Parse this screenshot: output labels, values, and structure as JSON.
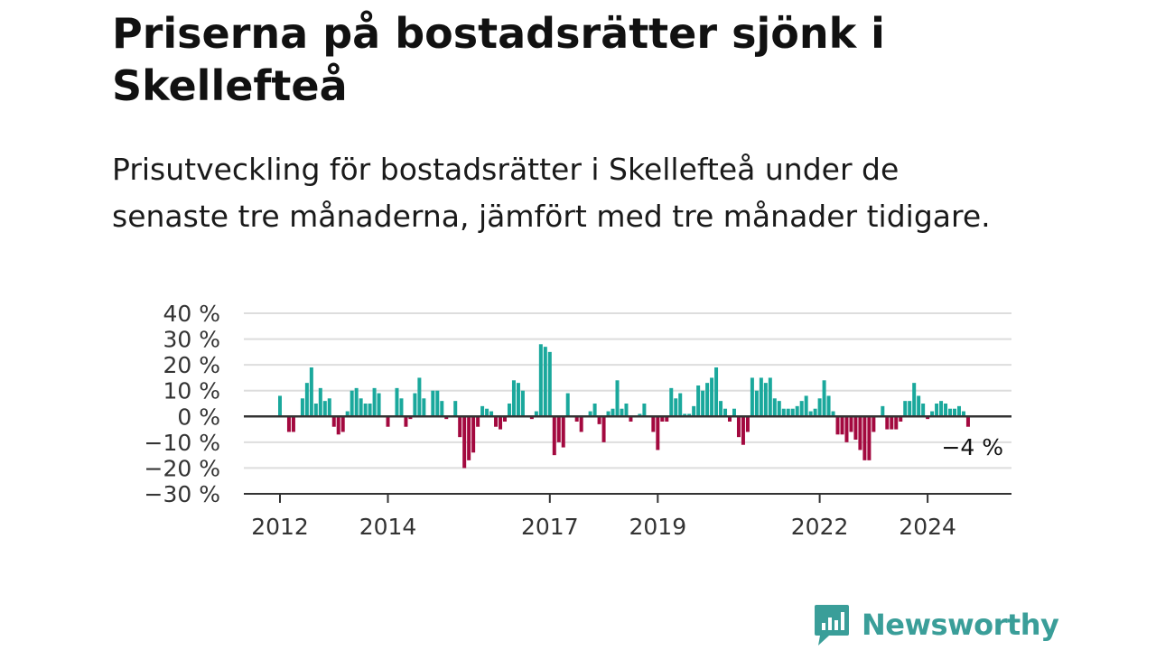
{
  "header": {
    "title": "Priserna på bostadsrätter sjönk i Skellefteå",
    "subtitle": "Prisutveckling för bostadsrätter i Skellefteå under de senaste tre månaderna, jämfört med tre månader tidigare."
  },
  "brand": {
    "name": "Newsworthy",
    "icon": "newsworthy-logo-icon",
    "color": "#3a9e99"
  },
  "colors": {
    "positive": "#1aa89c",
    "negative": "#a3093f",
    "grid": "#dddddd",
    "axis": "#333333"
  },
  "chart_data": {
    "type": "bar",
    "ylim": [
      -30,
      40
    ],
    "y_ticks": [
      40,
      30,
      20,
      10,
      0,
      -10,
      -20,
      -30
    ],
    "y_tick_labels": [
      "40 %",
      "30 %",
      "20 %",
      "10 %",
      "0 %",
      "−10 %",
      "−20 %",
      "−30 %"
    ],
    "x_ticks": [
      {
        "label": "2012",
        "index": 0
      },
      {
        "label": "2014",
        "index": 24
      },
      {
        "label": "2017",
        "index": 60
      },
      {
        "label": "2019",
        "index": 84
      },
      {
        "label": "2022",
        "index": 120
      },
      {
        "label": "2024",
        "index": 144
      }
    ],
    "grid": true,
    "last_value_label": "−4 %",
    "series": [
      {
        "start": "2012-01",
        "frequency": "monthly",
        "values": [
          8,
          0,
          -6,
          -6,
          0,
          7,
          13,
          19,
          5,
          11,
          6,
          7,
          -4,
          -7,
          -6,
          2,
          10,
          11,
          7,
          5,
          5,
          11,
          9,
          0,
          -4,
          0,
          11,
          7,
          -4,
          -1,
          9,
          15,
          7,
          0,
          10,
          10,
          6,
          -1,
          0,
          6,
          -8,
          -20,
          -17,
          -14,
          -4,
          4,
          3,
          2,
          -4,
          -5,
          -2,
          5,
          14,
          13,
          10,
          0,
          -1,
          2,
          28,
          27,
          25,
          -15,
          -10,
          -12,
          9,
          0,
          -2,
          -6,
          0,
          2,
          5,
          -3,
          -10,
          2,
          3,
          14,
          3,
          5,
          -2,
          0,
          1,
          5,
          0,
          -6,
          -13,
          -2,
          -2,
          11,
          7,
          9,
          1,
          1,
          4,
          12,
          10,
          13,
          15,
          19,
          6,
          3,
          -2,
          3,
          -8,
          -11,
          -6,
          15,
          10,
          15,
          13,
          15,
          7,
          6,
          3,
          3,
          3,
          4,
          6,
          8,
          2,
          3,
          7,
          14,
          8,
          2,
          -7,
          -7,
          -10,
          -6,
          -9,
          -13,
          -17,
          -17,
          -6,
          0,
          4,
          -5,
          -5,
          -5,
          -2,
          6,
          6,
          13,
          8,
          5,
          -1,
          2,
          5,
          6,
          5,
          3,
          3,
          4,
          2,
          -4
        ]
      }
    ]
  }
}
